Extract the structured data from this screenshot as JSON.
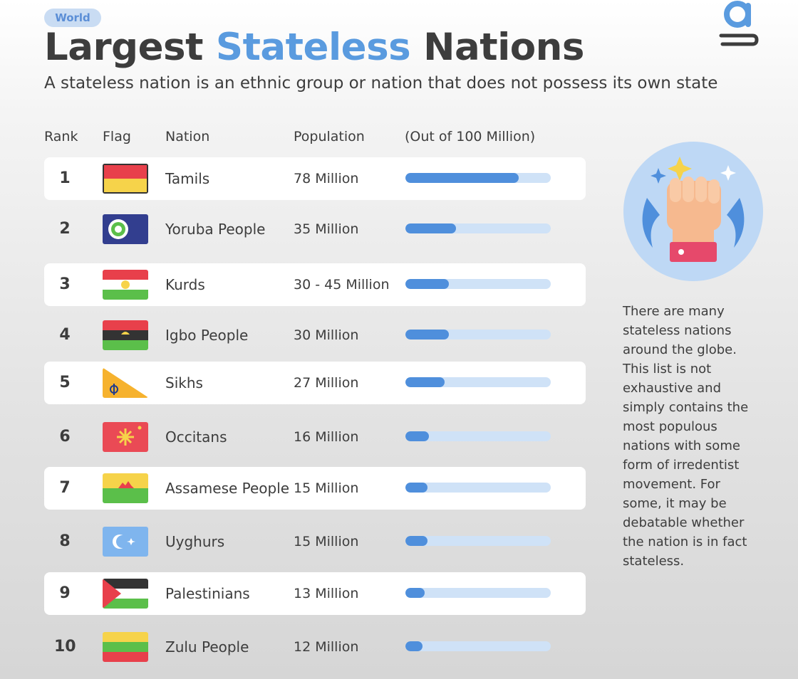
{
  "tag": "World",
  "title": {
    "part1": "Largest ",
    "highlight": "Stateless",
    "part2": " Nations"
  },
  "subtitle": "A stateless nation is an ethnic group or nation that does not possess its own state",
  "logo_icon": "g-logo-icon",
  "columns": {
    "rank": "Rank",
    "flag": "Flag",
    "nation": "Nation",
    "population": "Population",
    "scale": "(Out of 100 Million)"
  },
  "colors": {
    "accent": "#5a9bdf",
    "bar_fill": "#4f8fdc",
    "bar_track": "#cfe2f7",
    "tag_bg": "#c9dcf3"
  },
  "chart_data": {
    "type": "bar",
    "title": "Largest Stateless Nations",
    "xlabel": "",
    "ylabel": "(Out of 100 Million)",
    "ylim": [
      0,
      100
    ],
    "categories": [
      "Tamils",
      "Yoruba People",
      "Kurds",
      "Igbo People",
      "Sikhs",
      "Occitans",
      "Assamese People",
      "Uyghurs",
      "Palestinians",
      "Zulu People"
    ],
    "values": [
      78,
      35,
      30,
      30,
      27,
      16,
      15,
      15,
      13,
      12
    ],
    "rows": [
      {
        "rank": "1",
        "nation": "Tamils",
        "population": "78 Million",
        "value": 78,
        "flag": "tamil-flag-icon"
      },
      {
        "rank": "2",
        "nation": "Yoruba People",
        "population": "35 Million",
        "value": 35,
        "flag": "yoruba-flag-icon"
      },
      {
        "rank": "3",
        "nation": "Kurds",
        "population": "30 - 45 Million",
        "value": 30,
        "flag": "kurdish-flag-icon"
      },
      {
        "rank": "4",
        "nation": "Igbo People",
        "population": "30 Million",
        "value": 30,
        "flag": "biafra-flag-icon"
      },
      {
        "rank": "5",
        "nation": "Sikhs",
        "population": "27 Million",
        "value": 27,
        "flag": "sikh-flag-icon"
      },
      {
        "rank": "6",
        "nation": "Occitans",
        "population": "16 Million",
        "value": 16,
        "flag": "occitan-flag-icon"
      },
      {
        "rank": "7",
        "nation": "Assamese People",
        "population": "15 Million",
        "value": 15,
        "flag": "assamese-flag-icon"
      },
      {
        "rank": "8",
        "nation": "Uyghurs",
        "population": "15 Million",
        "value": 15,
        "flag": "east-turkestan-flag-icon"
      },
      {
        "rank": "9",
        "nation": "Palestinians",
        "population": "13 Million",
        "value": 13,
        "flag": "palestine-flag-icon"
      },
      {
        "rank": "10",
        "nation": "Zulu People",
        "population": "12 Million",
        "value": 12,
        "flag": "zulu-flag-icon"
      }
    ]
  },
  "illustration_icon": "raised-fist-icon",
  "note": "There are many stateless nations around the globe. This list is not exhaustive and simply contains the most populous nations with some form of irredentist movement. For some, it may be debatable whether the nation is in fact stateless."
}
